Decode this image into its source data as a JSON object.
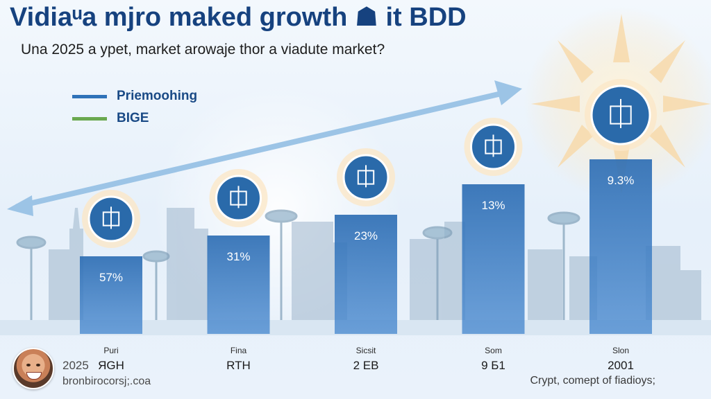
{
  "chart_data": {
    "type": "bar",
    "title": "Vidiaᵘa mjro maked growth ☗ it BDD",
    "subtitle": "Una 2025 a ypet, market arowaje thor a viadute market?",
    "categories": [
      {
        "top": "Puri",
        "bottom": "ЯGH"
      },
      {
        "top": "Fina",
        "bottom": "RTH"
      },
      {
        "top": "Sicsit",
        "bottom": "2 EB"
      },
      {
        "top": "Som",
        "bottom": "9 Б1"
      },
      {
        "top": "Slon",
        "bottom": "2001"
      }
    ],
    "series": [
      {
        "name": "Priemoohing",
        "color": "#2f72b8",
        "values": [
          57,
          31,
          23,
          13,
          9.3
        ],
        "labels": [
          "57%",
          "31%",
          "23%",
          "13%",
          "9.3%"
        ],
        "relative_heights": [
          0.56,
          0.71,
          0.86,
          1.08,
          1.26
        ]
      }
    ],
    "legend": [
      {
        "label": "Priemoohing",
        "color": "#2f72b8"
      },
      {
        "label": "BIGE",
        "color": "#6aa84f"
      }
    ],
    "icons": [
      "globe-icon",
      "building-icon",
      "tower-icon",
      "bridge-icon",
      "sun-emblem-icon"
    ],
    "trend_arrow": "up-right",
    "xlabel": "",
    "ylabel": "",
    "grid": false,
    "legend_position": "top-left"
  },
  "footer": {
    "year": "2025",
    "site": "bronbiroсorsj;.coa",
    "credit": "Crypt, comept of fiadioys;"
  }
}
